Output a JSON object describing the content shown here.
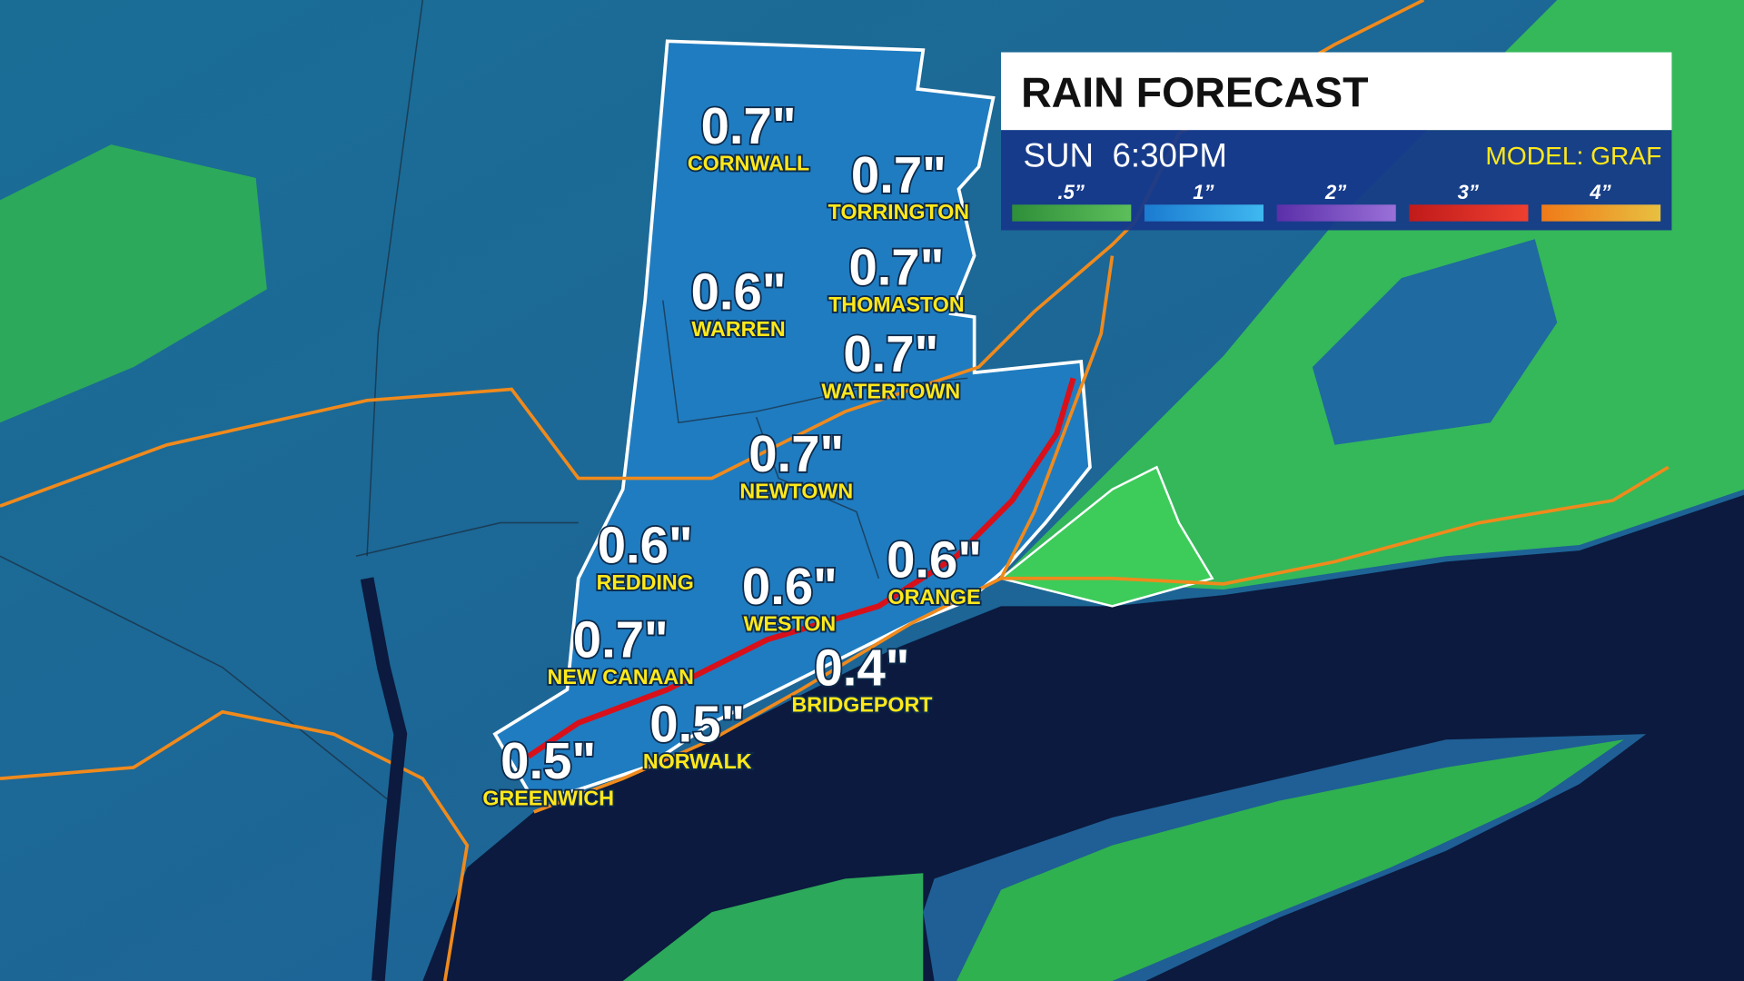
{
  "header": {
    "title": "RAIN FORECAST",
    "time": "SUN  6:30PM",
    "model": "MODEL: GRAF"
  },
  "legend": [
    ".5”",
    "1”",
    "2”",
    "3”",
    "4”"
  ],
  "cities": [
    {
      "name": "CORNWALL",
      "amount": "0.7\""
    },
    {
      "name": "TORRINGTON",
      "amount": "0.7\""
    },
    {
      "name": "WARREN",
      "amount": "0.6\""
    },
    {
      "name": "THOMASTON",
      "amount": "0.7\""
    },
    {
      "name": "WATERTOWN",
      "amount": "0.7\""
    },
    {
      "name": "NEWTOWN",
      "amount": "0.7\""
    },
    {
      "name": "REDDING",
      "amount": "0.6\""
    },
    {
      "name": "WESTON",
      "amount": "0.6\""
    },
    {
      "name": "ORANGE",
      "amount": "0.6\""
    },
    {
      "name": "NEW CANAAN",
      "amount": "0.7\""
    },
    {
      "name": "BRIDGEPORT",
      "amount": "0.4\""
    },
    {
      "name": "NORWALK",
      "amount": "0.5\""
    },
    {
      "name": "GREENWICH",
      "amount": "0.5\""
    }
  ]
}
